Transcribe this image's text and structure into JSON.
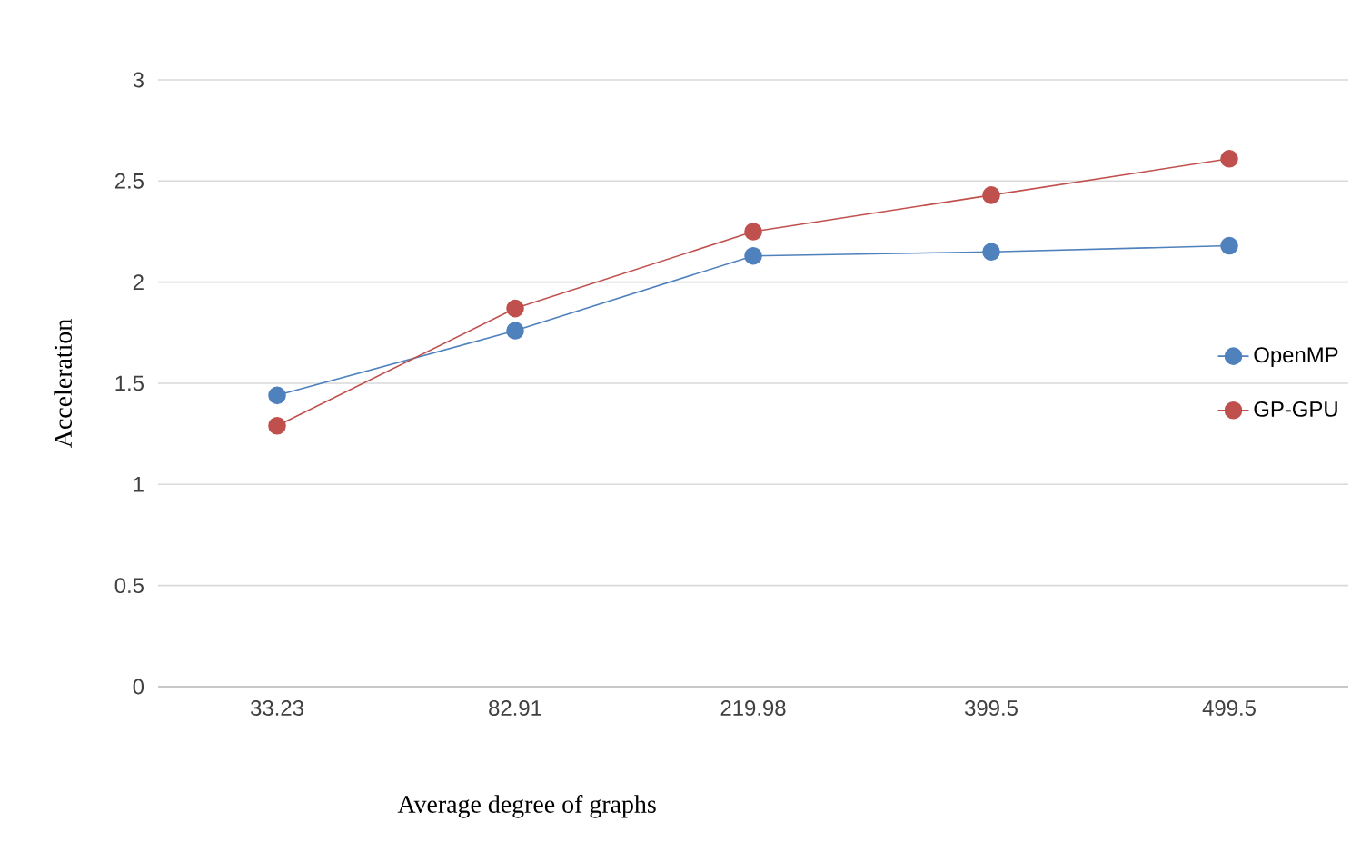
{
  "chart_data": {
    "type": "line",
    "xlabel": "Average degree of graphs",
    "ylabel": "Acceleration",
    "categories": [
      "33.23",
      "82.91",
      "219.98",
      "399.5",
      "499.5"
    ],
    "series": [
      {
        "name": "OpenMP",
        "color": "#4f81bd",
        "values": [
          1.44,
          1.76,
          2.13,
          2.15,
          2.18
        ]
      },
      {
        "name": "GP-GPU",
        "color": "#c0504d",
        "values": [
          1.29,
          1.87,
          2.25,
          2.43,
          2.61
        ]
      }
    ],
    "ylim": [
      0,
      3
    ],
    "yticks": [
      0,
      0.5,
      1,
      1.5,
      2,
      2.5,
      3
    ],
    "grid": "y",
    "legend": "right",
    "marker": "circle",
    "line_style": "solid"
  }
}
